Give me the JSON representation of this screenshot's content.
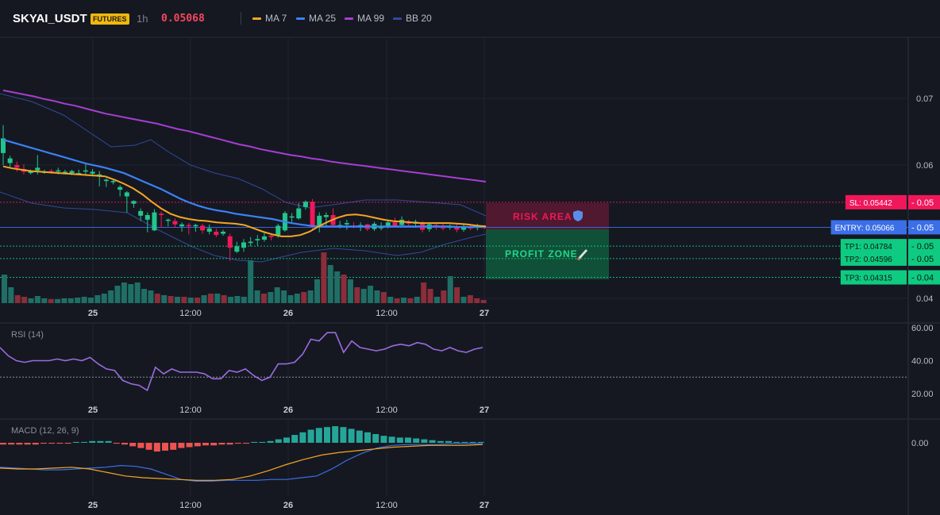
{
  "header": {
    "symbol": "SKYAI_USDT",
    "badge": "FUTURES",
    "timeframe": "1h",
    "price": "0.05068",
    "legend": [
      {
        "label": "MA 7",
        "color": "#f5a623"
      },
      {
        "label": "MA 25",
        "color": "#3b82f6"
      },
      {
        "label": "MA 99",
        "color": "#a53fd1"
      },
      {
        "label": "BB 20",
        "color": "#2f4b9a"
      }
    ]
  },
  "colors": {
    "up": "#22c58b",
    "down": "#f0185a",
    "vol_up": "#1f6f66",
    "vol_down": "#8b2e3a",
    "bg": "#151821",
    "grid": "#1f2330"
  },
  "chart_data": [
    {
      "type": "candlestick",
      "title": "",
      "x_ticks": [
        "25",
        "12:00",
        "26",
        "12:00",
        "27"
      ],
      "y_ticks": [
        "0.07",
        "0.06",
        "0.04"
      ],
      "ma7": [
        0.0598,
        0.0595,
        0.0593,
        0.0591,
        0.059,
        0.0589,
        0.0588,
        0.0587,
        0.0586,
        0.0585,
        0.0584,
        0.0583,
        0.0578,
        0.0572,
        0.0565,
        0.0556,
        0.0545,
        0.0535,
        0.0527,
        0.0522,
        0.0519,
        0.0517,
        0.0516,
        0.0514,
        0.0513,
        0.0512,
        0.051,
        0.0505,
        0.05,
        0.0496,
        0.0493,
        0.0493,
        0.0495,
        0.05,
        0.0508,
        0.0515,
        0.0521,
        0.0525,
        0.0526,
        0.0524,
        0.0521,
        0.0518,
        0.0516,
        0.0515,
        0.0514,
        0.0513,
        0.0513,
        0.0513,
        0.0513,
        0.0512,
        0.0511,
        0.0509,
        0.0508
      ],
      "ma25": [
        0.0638,
        0.0634,
        0.063,
        0.0626,
        0.0622,
        0.0618,
        0.0614,
        0.061,
        0.0606,
        0.0602,
        0.0599,
        0.0596,
        0.0592,
        0.0588,
        0.0582,
        0.0576,
        0.057,
        0.0564,
        0.0557,
        0.055,
        0.0544,
        0.0539,
        0.0535,
        0.0532,
        0.053,
        0.0527,
        0.0525,
        0.0523,
        0.0521,
        0.0519,
        0.0516,
        0.0513,
        0.0511,
        0.0509,
        0.0508,
        0.0508,
        0.0508,
        0.0508,
        0.0508,
        0.0508,
        0.0508,
        0.0508,
        0.0508,
        0.0508,
        0.0508,
        0.0508,
        0.0508,
        0.0508,
        0.0508,
        0.0507,
        0.0507,
        0.0507,
        0.0507
      ],
      "ma99": [
        0.0712,
        0.0709,
        0.0706,
        0.0703,
        0.0699,
        0.0696,
        0.0692,
        0.0689,
        0.0685,
        0.0681,
        0.0677,
        0.0674,
        0.0671,
        0.0668,
        0.0665,
        0.0662,
        0.0658,
        0.0654,
        0.0651,
        0.0647,
        0.0643,
        0.0639,
        0.0635,
        0.0631,
        0.0628,
        0.0624,
        0.0621,
        0.0618,
        0.0615,
        0.0613,
        0.061,
        0.0608,
        0.0605,
        0.0603,
        0.0601,
        0.0599,
        0.0597,
        0.0595,
        0.0593,
        0.0591,
        0.0589,
        0.0587,
        0.0585,
        0.0583,
        0.0581,
        0.0579,
        0.0577,
        0.0575
      ],
      "levels": [
        {
          "label": "SL: 0.05442",
          "axis": "0.05",
          "value": 0.05442,
          "color": "#f0185a"
        },
        {
          "label": "ENTRY: 0.05066",
          "axis": "0.05",
          "value": 0.05066,
          "color": "#3b6fe8"
        },
        {
          "label": "TP1: 0.04784",
          "axis": "0.05",
          "value": 0.04784,
          "color": "#0ecb81"
        },
        {
          "label": "TP2: 0.04596",
          "axis": "0.05",
          "value": 0.04596,
          "color": "#0ecb81"
        },
        {
          "label": "TP3: 0.04315",
          "axis": "0.04",
          "value": 0.04315,
          "color": "#0ecb81"
        }
      ],
      "zones": [
        {
          "label": "RISK AREA",
          "icon": "shield-icon",
          "from": 0.05066,
          "to": 0.05442
        },
        {
          "label": "PROFIT ZONE",
          "icon": "rocket-icon",
          "from": 0.04315,
          "to": 0.05066
        }
      ]
    },
    {
      "type": "line",
      "title": "RSI (14)",
      "y_ticks": [
        "60.00",
        "40.00",
        "20.00"
      ],
      "x_ticks": [
        "25",
        "12:00",
        "26",
        "12:00",
        "27"
      ],
      "reference": 30,
      "values": [
        48,
        43,
        40,
        39,
        40,
        40,
        40,
        41,
        40,
        41,
        40,
        42,
        38,
        35,
        34,
        28,
        26,
        25,
        22,
        36,
        32,
        35,
        33,
        33,
        33,
        32,
        29,
        29,
        34,
        33,
        35,
        31,
        28,
        30,
        38,
        38,
        39,
        44,
        53,
        52,
        57,
        57,
        45,
        52,
        48,
        47,
        46,
        47,
        49,
        50,
        49,
        51,
        50,
        47,
        46,
        48,
        46,
        45,
        47,
        48
      ]
    },
    {
      "type": "macd",
      "title": "MACD (12, 26, 9)",
      "y_ticks": [
        "0.00"
      ],
      "x_ticks": [
        "25",
        "12:00",
        "26",
        "12:00",
        "27"
      ],
      "histogram": [
        -0.0002,
        -0.0002,
        -0.0002,
        -0.0002,
        -0.0002,
        -0.0001,
        -0.0001,
        -0.0001,
        -0.0001,
        0.0001,
        0.0001,
        0.0002,
        0.0002,
        0.0002,
        -0.0001,
        -0.0002,
        -0.0004,
        -0.0006,
        -0.0008,
        -0.001,
        -0.0009,
        -0.0008,
        -0.0006,
        -0.0005,
        -0.0004,
        -0.0003,
        -0.0003,
        -0.0002,
        -0.0002,
        -0.0001,
        -0.0001,
        0.0001,
        0.0001,
        0.0002,
        0.0004,
        0.0006,
        0.0009,
        0.0012,
        0.0015,
        0.0017,
        0.0018,
        0.0019,
        0.0018,
        0.0016,
        0.0014,
        0.0012,
        0.001,
        0.0008,
        0.0007,
        0.0006,
        0.0006,
        0.0005,
        0.0004,
        0.0003,
        0.0002,
        0.0002,
        0.0001,
        0.0001,
        0.0001,
        0.0001
      ],
      "macd": [
        -0.0028,
        -0.0029,
        -0.003,
        -0.0031,
        -0.0031,
        -0.003,
        -0.0029,
        -0.0028,
        -0.0026,
        -0.0027,
        -0.003,
        -0.0036,
        -0.0042,
        -0.0044,
        -0.0044,
        -0.0043,
        -0.0043,
        -0.0043,
        -0.0042,
        -0.0042,
        -0.004,
        -0.0038,
        -0.003,
        -0.002,
        -0.0012,
        -0.0006,
        -0.0003,
        -0.0002,
        -0.0002,
        -0.0002,
        -0.0001,
        -0.0001,
        -0.0001
      ],
      "signal": [
        -0.0029,
        -0.003,
        -0.003,
        -0.0029,
        -0.0028,
        -0.003,
        -0.0034,
        -0.0038,
        -0.004,
        -0.0041,
        -0.0042,
        -0.0043,
        -0.0043,
        -0.0042,
        -0.0038,
        -0.0032,
        -0.0025,
        -0.0019,
        -0.0014,
        -0.0011,
        -0.0009,
        -0.0007,
        -0.0005,
        -0.0004,
        -0.0003,
        -0.0003,
        -0.0003,
        -0.0002
      ]
    }
  ]
}
